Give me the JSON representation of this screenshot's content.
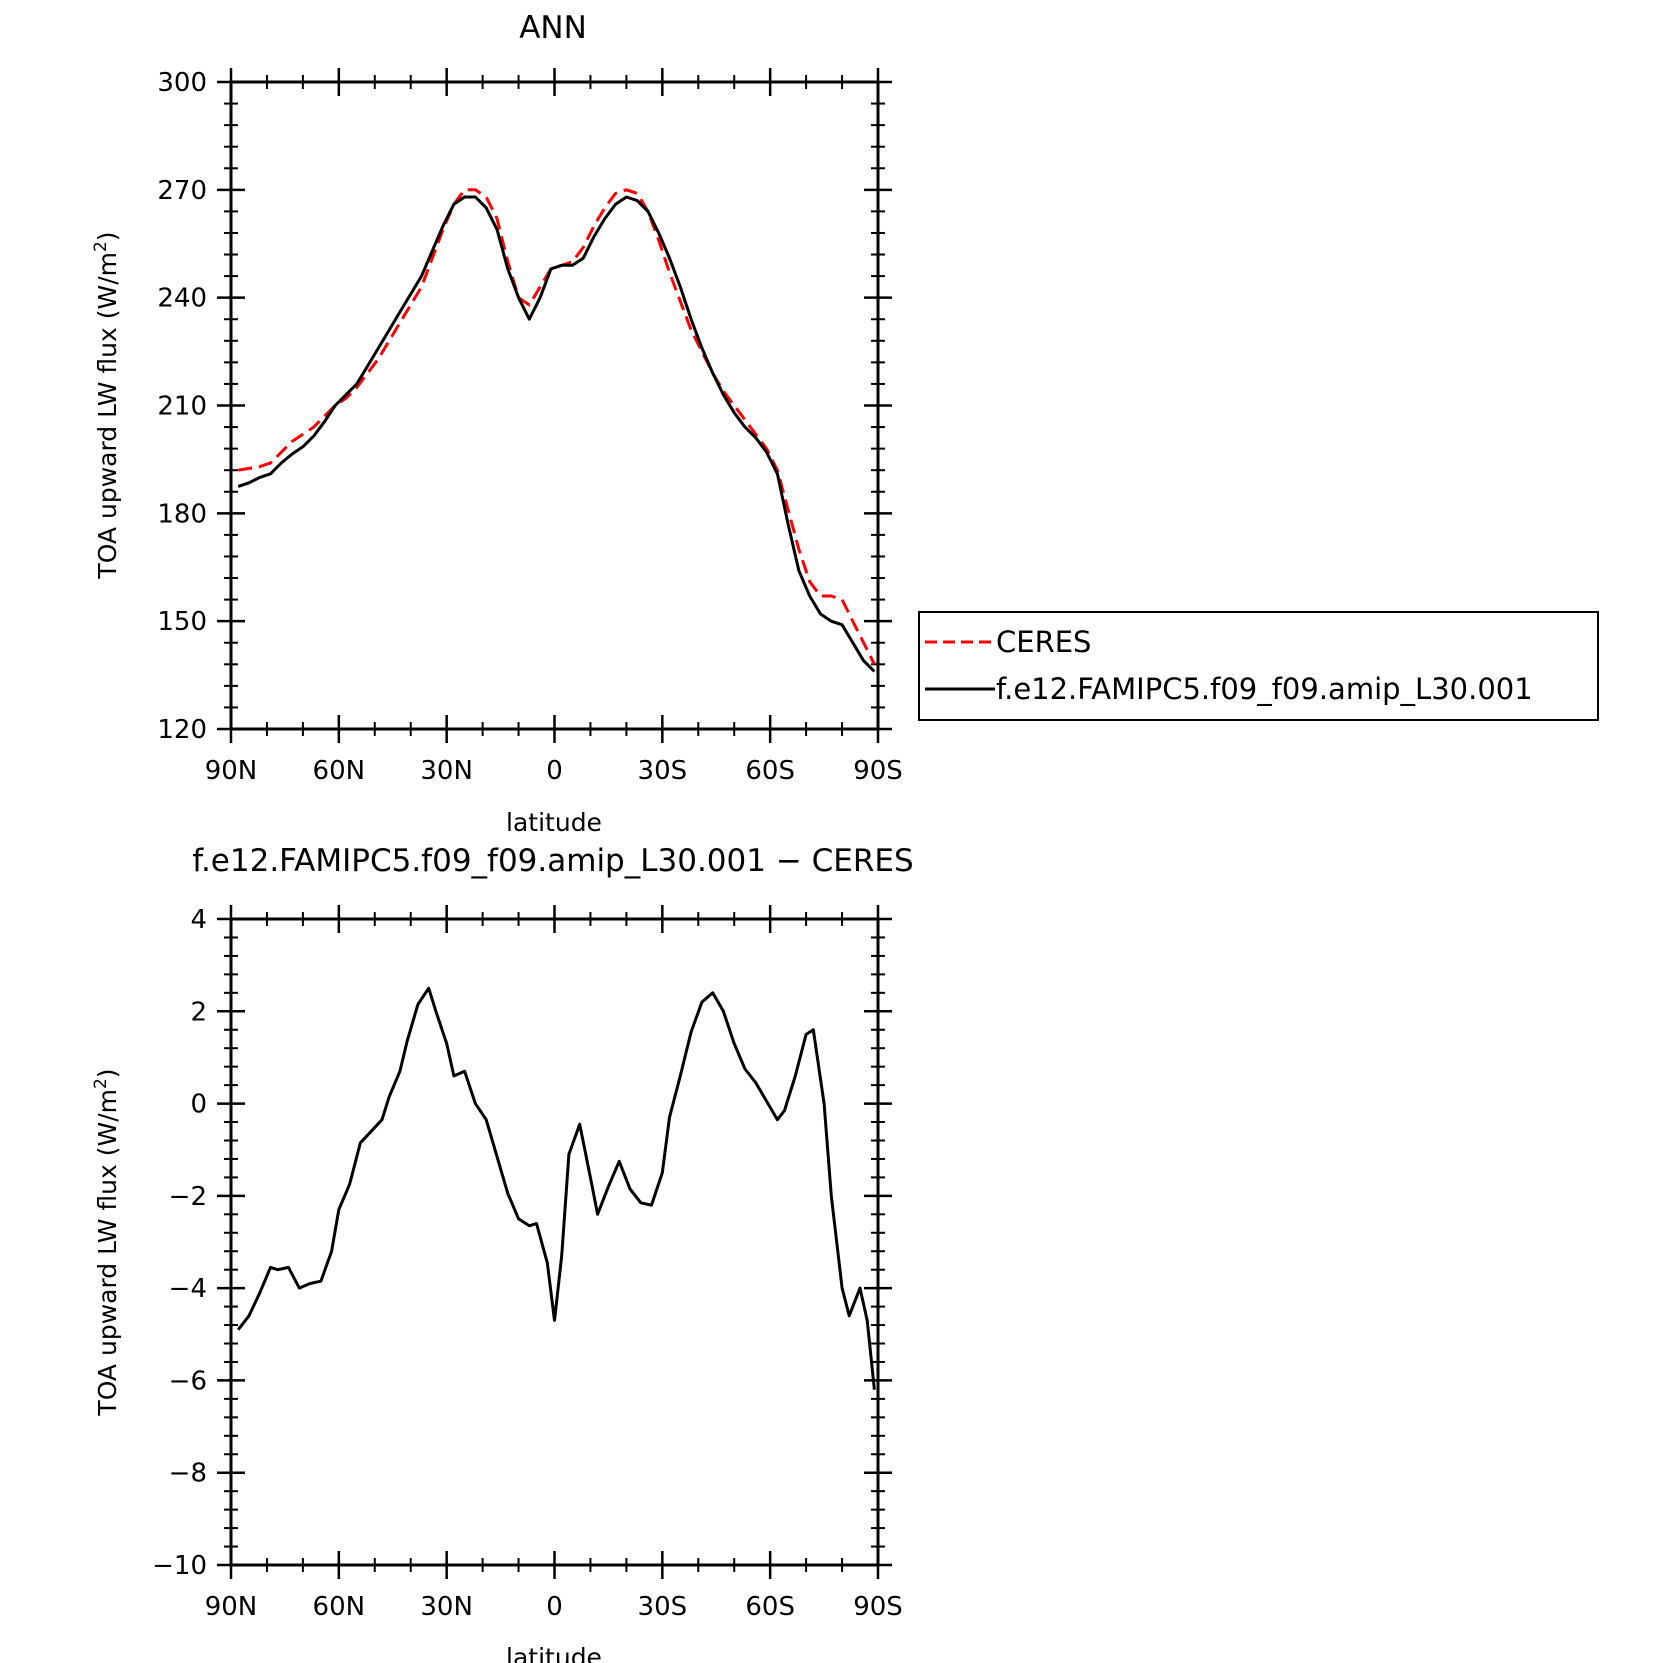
{
  "chart_data": [
    {
      "type": "line",
      "title": "ANN",
      "xlabel": "latitude",
      "ylabel": "TOA upward LW flux (W/m",
      "ylabel_sup": "2",
      "ylabel_close": ")",
      "xlim": [
        90,
        -90
      ],
      "ylim": [
        120,
        300
      ],
      "xticks": [
        90,
        60,
        30,
        0,
        -30,
        -60,
        -90
      ],
      "xtick_labels": [
        "90N",
        "60N",
        "30N",
        "0",
        "30S",
        "60S",
        "90S"
      ],
      "yticks": [
        120,
        150,
        180,
        210,
        240,
        270,
        300
      ],
      "ytick_labels": [
        "120",
        "150",
        "180",
        "210",
        "240",
        "270",
        "300"
      ],
      "legend_position": "right",
      "series": [
        {
          "name": "CERES",
          "color": "#ff0000",
          "dash": "dashed",
          "x": [
            88,
            85,
            82,
            79,
            76,
            73,
            70,
            67,
            64,
            61,
            58,
            55,
            52,
            49,
            46,
            43,
            40,
            37,
            34,
            31,
            28,
            25,
            22,
            19,
            16,
            13,
            10,
            7,
            4,
            1,
            -2,
            -5,
            -8,
            -11,
            -14,
            -17,
            -20,
            -23,
            -26,
            -29,
            -32,
            -35,
            -38,
            -41,
            -44,
            -47,
            -50,
            -53,
            -56,
            -59,
            -62,
            -65,
            -68,
            -71,
            -74,
            -77,
            -80,
            -83,
            -86,
            -89
          ],
          "y": [
            192,
            192.5,
            193,
            194,
            197,
            200,
            202,
            204,
            207,
            210,
            212,
            215,
            219,
            223,
            228,
            233,
            238,
            243,
            251,
            259,
            266,
            270,
            270,
            268,
            262,
            250,
            240,
            238,
            243,
            248,
            249,
            250,
            254,
            260,
            265,
            269,
            270,
            269,
            264,
            256,
            247,
            239,
            231,
            225,
            219,
            214,
            210,
            206,
            202,
            198,
            192,
            181,
            170,
            161,
            157,
            157,
            156,
            150,
            144,
            138
          ]
        },
        {
          "name": "f.e12.FAMIPC5.f09_f09.amip_L30.001",
          "color": "#000000",
          "dash": "solid",
          "x": [
            88,
            85,
            82,
            79,
            76,
            73,
            70,
            67,
            64,
            61,
            58,
            55,
            52,
            49,
            46,
            43,
            40,
            37,
            34,
            31,
            28,
            25,
            22,
            19,
            16,
            13,
            10,
            7,
            4,
            1,
            -2,
            -5,
            -8,
            -11,
            -14,
            -17,
            -20,
            -23,
            -26,
            -29,
            -32,
            -35,
            -38,
            -41,
            -44,
            -47,
            -50,
            -53,
            -56,
            -59,
            -62,
            -65,
            -68,
            -71,
            -74,
            -77,
            -80,
            -83,
            -86,
            -89
          ],
          "y": [
            187.5,
            188.5,
            190,
            191,
            194,
            196.5,
            198.5,
            201.5,
            205.5,
            210,
            213,
            216,
            221,
            226,
            231,
            236,
            241,
            246,
            253,
            260,
            266,
            268,
            268,
            265,
            259,
            248,
            240,
            234,
            240,
            248,
            249,
            249,
            251,
            257,
            262,
            266,
            268,
            267,
            264,
            258,
            251,
            243,
            234,
            226,
            219,
            213,
            208,
            204,
            201,
            197,
            191,
            177,
            164,
            157,
            152,
            150,
            149,
            144,
            139,
            136
          ]
        }
      ]
    },
    {
      "type": "line",
      "title": "f.e12.FAMIPC5.f09_f09.amip_L30.001 − CERES",
      "xlabel": "latitude",
      "ylabel": "TOA upward LW flux (W/m",
      "ylabel_sup": "2",
      "ylabel_close": ")",
      "xlim": [
        90,
        -90
      ],
      "ylim": [
        -10,
        4
      ],
      "xticks": [
        90,
        60,
        30,
        0,
        -30,
        -60,
        -90
      ],
      "xtick_labels": [
        "90N",
        "60N",
        "30N",
        "0",
        "30S",
        "60S",
        "90S"
      ],
      "yticks": [
        -10,
        -8,
        -6,
        -4,
        -2,
        0,
        2,
        4
      ],
      "ytick_labels": [
        "−10",
        "−8",
        "−6",
        "−4",
        "−2",
        "0",
        "2",
        "4"
      ],
      "series": [
        {
          "color": "#000000",
          "dash": "solid",
          "x": [
            88,
            85,
            82,
            79,
            77,
            74,
            71,
            68,
            65,
            62,
            60,
            57,
            54,
            51,
            48,
            46,
            43,
            41,
            38,
            35,
            33,
            30,
            28,
            25,
            22,
            19,
            16,
            13,
            10,
            7,
            5,
            2,
            0,
            -2,
            -4,
            -7,
            -10,
            -12,
            -15,
            -18,
            -21,
            -24,
            -27,
            -30,
            -32,
            -35,
            -38,
            -41,
            -44,
            -47,
            -50,
            -53,
            -56,
            -59,
            -62,
            -64,
            -67,
            -70,
            -72,
            -75,
            -77,
            -80,
            -82,
            -85,
            -87,
            -89
          ],
          "y": [
            -4.9,
            -4.6,
            -4.1,
            -3.55,
            -3.6,
            -3.55,
            -4,
            -3.9,
            -3.85,
            -3.2,
            -2.3,
            -1.75,
            -0.85,
            -0.6,
            -0.35,
            0.15,
            0.7,
            1.35,
            2.15,
            2.5,
            2,
            1.3,
            0.6,
            0.7,
            0,
            -0.35,
            -1.15,
            -1.95,
            -2.5,
            -2.65,
            -2.6,
            -3.45,
            -4.7,
            -3.3,
            -1.1,
            -0.45,
            -1.6,
            -2.4,
            -1.8,
            -1.25,
            -1.85,
            -2.15,
            -2.2,
            -1.5,
            -0.3,
            0.6,
            1.55,
            2.2,
            2.4,
            2,
            1.3,
            0.75,
            0.45,
            0.05,
            -0.35,
            -0.15,
            0.6,
            1.5,
            1.6,
            0,
            -2,
            -4,
            -4.6,
            -4,
            -4.7,
            -6.2
          ]
        }
      ]
    }
  ]
}
